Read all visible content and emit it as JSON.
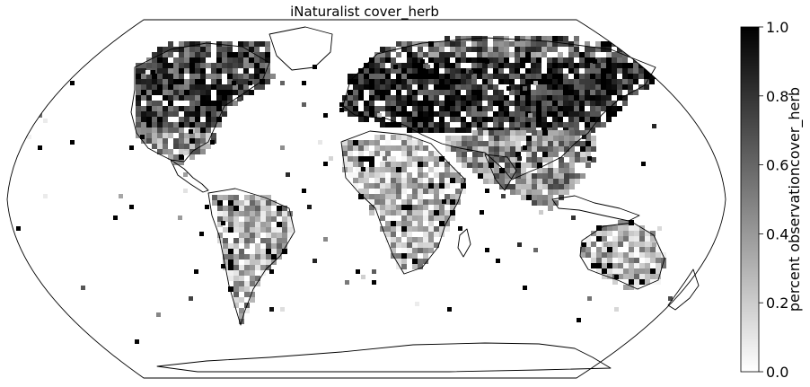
{
  "map": {
    "title": "iNaturalist cover_herb",
    "projection": "robinson",
    "colormap": "greys",
    "colorbar": {
      "label": "percent observationcover_herb",
      "min": 0.0,
      "max": 1.0,
      "ticks": [
        "0.0",
        "0.2",
        "0.4",
        "0.6",
        "0.8",
        "1.0"
      ]
    },
    "colors": {
      "low": "#ffffff",
      "high": "#000000"
    },
    "regions": [
      {
        "name": "north-america",
        "level": 0.75
      },
      {
        "name": "europe-siberia",
        "level": 0.85
      },
      {
        "name": "south-america",
        "level": 0.35
      },
      {
        "name": "africa",
        "level": 0.3
      },
      {
        "name": "south-asia",
        "level": 0.45
      },
      {
        "name": "australia",
        "level": 0.3
      }
    ]
  }
}
